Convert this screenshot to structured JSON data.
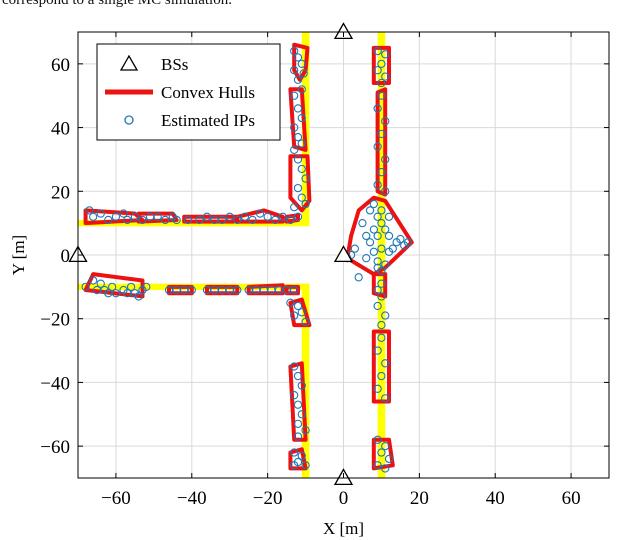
{
  "caption": "correspond to a single MC simulation.",
  "chart_data": {
    "type": "scatter",
    "xlabel": "X [m]",
    "ylabel": "Y [m]",
    "xlim": [
      -70,
      70
    ],
    "ylim": [
      -70,
      70
    ],
    "xticks": [
      -60,
      -40,
      -20,
      0,
      20,
      40,
      60
    ],
    "yticks": [
      -60,
      -40,
      -20,
      0,
      20,
      40,
      60
    ],
    "xtick_labels": [
      "−60",
      "−40",
      "−20",
      "0",
      "20",
      "40",
      "60"
    ],
    "ytick_labels": [
      "−60",
      "−40",
      "−20",
      "0",
      "20",
      "40",
      "60"
    ],
    "grid": true,
    "legend_position": "top-left",
    "legend": [
      {
        "label": "BSs",
        "marker": "triangle"
      },
      {
        "label": "Convex Hulls",
        "marker": "line"
      },
      {
        "label": "Estimated IPs",
        "marker": "circle"
      }
    ],
    "colors": {
      "road": "#ffff00",
      "hull": "#ee1111",
      "points": "#1f77b4",
      "bs": "#000000",
      "grid": "#d9d9d9"
    },
    "road_lanes": [
      {
        "x": [
          -70,
          -9
        ],
        "y": [
          9,
          11
        ]
      },
      {
        "x": [
          -70,
          -9
        ],
        "y": [
          -11,
          -9
        ]
      },
      {
        "x": [
          -11,
          -9
        ],
        "y": [
          11,
          70
        ]
      },
      {
        "x": [
          -11,
          -9
        ],
        "y": [
          -70,
          -9
        ]
      },
      {
        "x": [
          9,
          11
        ],
        "y": [
          -70,
          70
        ]
      }
    ],
    "base_stations": [
      {
        "x": 0,
        "y": 70
      },
      {
        "x": 0,
        "y": 0
      },
      {
        "x": 0,
        "y": -70
      },
      {
        "x": -70,
        "y": 0
      }
    ],
    "convex_hulls": [
      [
        [
          -13,
          66
        ],
        [
          -9.5,
          65
        ],
        [
          -10,
          58
        ],
        [
          -11.5,
          55
        ],
        [
          -13,
          58
        ]
      ],
      [
        [
          -14,
          52
        ],
        [
          -11,
          52
        ],
        [
          -10,
          33
        ],
        [
          -13,
          34
        ]
      ],
      [
        [
          -14,
          31
        ],
        [
          -9.5,
          31
        ],
        [
          -9,
          17
        ],
        [
          -11,
          14
        ],
        [
          -14,
          18
        ]
      ],
      [
        [
          -68,
          14
        ],
        [
          -55,
          13
        ],
        [
          -53,
          11
        ],
        [
          -68,
          10
        ]
      ],
      [
        [
          -54,
          13
        ],
        [
          -45,
          13
        ],
        [
          -44,
          11
        ],
        [
          -54,
          10.5
        ]
      ],
      [
        [
          -42,
          12
        ],
        [
          -28,
          12
        ],
        [
          -29,
          10.5
        ],
        [
          -42,
          10.5
        ]
      ],
      [
        [
          -28,
          12
        ],
        [
          -21,
          14
        ],
        [
          -16,
          12
        ],
        [
          -16,
          10.5
        ],
        [
          -28,
          10.5
        ]
      ],
      [
        [
          -15,
          12
        ],
        [
          -12,
          12.5
        ],
        [
          -12,
          11
        ],
        [
          -15,
          10.5
        ]
      ],
      [
        [
          -66,
          -6
        ],
        [
          -53,
          -8
        ],
        [
          -53,
          -13
        ],
        [
          -68,
          -11
        ]
      ],
      [
        [
          -46,
          -10
        ],
        [
          -40,
          -10
        ],
        [
          -40,
          -12
        ],
        [
          -46,
          -12
        ]
      ],
      [
        [
          -36,
          -10
        ],
        [
          -28,
          -10
        ],
        [
          -28,
          -12
        ],
        [
          -36,
          -12
        ]
      ],
      [
        [
          -25,
          -10
        ],
        [
          -16,
          -9.5
        ],
        [
          -16,
          -12
        ],
        [
          -25,
          -12
        ]
      ],
      [
        [
          -15,
          -10
        ],
        [
          -12,
          -10
        ],
        [
          -12,
          -12
        ],
        [
          -15,
          -12
        ]
      ],
      [
        [
          -14,
          -15
        ],
        [
          -11,
          -14
        ],
        [
          -9,
          -22
        ],
        [
          -13,
          -22
        ]
      ],
      [
        [
          -14,
          -35
        ],
        [
          -11,
          -34
        ],
        [
          -10,
          -58
        ],
        [
          -13,
          -58
        ]
      ],
      [
        [
          -14,
          -62
        ],
        [
          -11,
          -61
        ],
        [
          -10,
          -67
        ],
        [
          -14,
          -67
        ]
      ],
      [
        [
          8,
          65
        ],
        [
          12,
          65
        ],
        [
          12,
          54
        ],
        [
          8,
          54
        ]
      ],
      [
        [
          9,
          51
        ],
        [
          11,
          52
        ],
        [
          11,
          19
        ],
        [
          9,
          20
        ]
      ],
      [
        [
          8,
          18
        ],
        [
          11,
          17
        ],
        [
          18,
          4
        ],
        [
          11,
          -4
        ],
        [
          8,
          -6
        ],
        [
          1,
          -1
        ],
        [
          2,
          6
        ],
        [
          4,
          14
        ]
      ],
      [
        [
          8,
          -6
        ],
        [
          11,
          -6
        ],
        [
          11,
          -13
        ],
        [
          8,
          -12
        ]
      ],
      [
        [
          8,
          -24
        ],
        [
          12,
          -24
        ],
        [
          12,
          -46
        ],
        [
          8,
          -46
        ]
      ],
      [
        [
          8,
          -58
        ],
        [
          12,
          -58
        ],
        [
          13,
          -66
        ],
        [
          8,
          -67
        ]
      ]
    ],
    "estimated_ips": [
      [
        -13,
        64
      ],
      [
        -12,
        62
      ],
      [
        -11,
        60
      ],
      [
        -13,
        58
      ],
      [
        -10.5,
        57
      ],
      [
        -12,
        55
      ],
      [
        -11,
        52
      ],
      [
        -13,
        50
      ],
      [
        -12,
        46
      ],
      [
        -11,
        43
      ],
      [
        -13,
        40
      ],
      [
        -12,
        37
      ],
      [
        -11,
        35
      ],
      [
        -13,
        33
      ],
      [
        -12,
        30
      ],
      [
        -11,
        27
      ],
      [
        -10,
        24
      ],
      [
        -12,
        21
      ],
      [
        -11,
        18
      ],
      [
        -10,
        16
      ],
      [
        -13,
        15
      ],
      [
        -67,
        14
      ],
      [
        -66,
        12
      ],
      [
        -64,
        13
      ],
      [
        -62,
        11
      ],
      [
        -60,
        12
      ],
      [
        -58,
        13
      ],
      [
        -57,
        11
      ],
      [
        -55,
        12
      ],
      [
        -53,
        11
      ],
      [
        -51,
        12
      ],
      [
        -49,
        12
      ],
      [
        -47,
        11
      ],
      [
        -45,
        12
      ],
      [
        -44,
        11
      ],
      [
        -41,
        11
      ],
      [
        -38,
        11
      ],
      [
        -36,
        12
      ],
      [
        -34,
        11
      ],
      [
        -32,
        11
      ],
      [
        -30,
        12
      ],
      [
        -28,
        11
      ],
      [
        -26,
        12
      ],
      [
        -24,
        11
      ],
      [
        -22,
        13
      ],
      [
        -20,
        12
      ],
      [
        -18,
        11
      ],
      [
        -16,
        12
      ],
      [
        -14,
        11
      ],
      [
        -12,
        12
      ],
      [
        -68,
        -10
      ],
      [
        -66,
        -8
      ],
      [
        -65,
        -11
      ],
      [
        -64,
        -9
      ],
      [
        -63,
        -11
      ],
      [
        -62,
        -12
      ],
      [
        -61,
        -10
      ],
      [
        -60,
        -12
      ],
      [
        -58,
        -11
      ],
      [
        -57,
        -12
      ],
      [
        -56,
        -10
      ],
      [
        -55,
        -12
      ],
      [
        -54,
        -13
      ],
      [
        -53,
        -11
      ],
      [
        -52,
        -10
      ],
      [
        -46,
        -11
      ],
      [
        -44,
        -11
      ],
      [
        -42,
        -11
      ],
      [
        -40,
        -11
      ],
      [
        -36,
        -11
      ],
      [
        -34,
        -11
      ],
      [
        -32,
        -11
      ],
      [
        -30,
        -11
      ],
      [
        -28,
        -11
      ],
      [
        -25,
        -11
      ],
      [
        -23,
        -11
      ],
      [
        -21,
        -11
      ],
      [
        -19,
        -11
      ],
      [
        -17,
        -11
      ],
      [
        -15,
        -11
      ],
      [
        -13,
        -11
      ],
      [
        -14,
        -15
      ],
      [
        -12,
        -16
      ],
      [
        -11,
        -18
      ],
      [
        -13,
        -19
      ],
      [
        -10,
        -21
      ],
      [
        -13,
        -35
      ],
      [
        -12,
        -38
      ],
      [
        -11,
        -41
      ],
      [
        -13,
        -44
      ],
      [
        -12,
        -47
      ],
      [
        -11,
        -50
      ],
      [
        -12,
        -53
      ],
      [
        -10,
        -55
      ],
      [
        -12,
        -57
      ],
      [
        -13,
        -62
      ],
      [
        -11,
        -63
      ],
      [
        -12,
        -65
      ],
      [
        -10,
        -66
      ],
      [
        -13,
        -66
      ],
      [
        9,
        64
      ],
      [
        11,
        63
      ],
      [
        10,
        60
      ],
      [
        9,
        58
      ],
      [
        11,
        56
      ],
      [
        10,
        54
      ],
      [
        10,
        50
      ],
      [
        9,
        46
      ],
      [
        11,
        42
      ],
      [
        10,
        38
      ],
      [
        9,
        34
      ],
      [
        11,
        30
      ],
      [
        10,
        26
      ],
      [
        9,
        22
      ],
      [
        11,
        20
      ],
      [
        7,
        14
      ],
      [
        9,
        12
      ],
      [
        10,
        10
      ],
      [
        8,
        8
      ],
      [
        6,
        6
      ],
      [
        12,
        6
      ],
      [
        14,
        4
      ],
      [
        16,
        3
      ],
      [
        13,
        2
      ],
      [
        10,
        2
      ],
      [
        8,
        1
      ],
      [
        6,
        -1
      ],
      [
        9,
        -2
      ],
      [
        11,
        -3
      ],
      [
        9,
        -4
      ],
      [
        12,
        1
      ],
      [
        15,
        5
      ],
      [
        17,
        4
      ],
      [
        7,
        4
      ],
      [
        9,
        6
      ],
      [
        11,
        8
      ],
      [
        5,
        10
      ],
      [
        10,
        14
      ],
      [
        12,
        12
      ],
      [
        8,
        16
      ],
      [
        3,
        2
      ],
      [
        2,
        0
      ],
      [
        1,
        -1
      ],
      [
        10,
        -5
      ],
      [
        4,
        -7
      ],
      [
        10,
        -9
      ],
      [
        9,
        -11
      ],
      [
        10,
        -13
      ],
      [
        9,
        -16
      ],
      [
        11,
        -19
      ],
      [
        10,
        -22
      ],
      [
        10,
        -26
      ],
      [
        9,
        -30
      ],
      [
        11,
        -34
      ],
      [
        10,
        -38
      ],
      [
        9,
        -42
      ],
      [
        11,
        -45
      ],
      [
        9,
        -58
      ],
      [
        11,
        -60
      ],
      [
        10,
        -62
      ],
      [
        12,
        -64
      ],
      [
        9,
        -66
      ],
      [
        11,
        -67
      ]
    ]
  }
}
